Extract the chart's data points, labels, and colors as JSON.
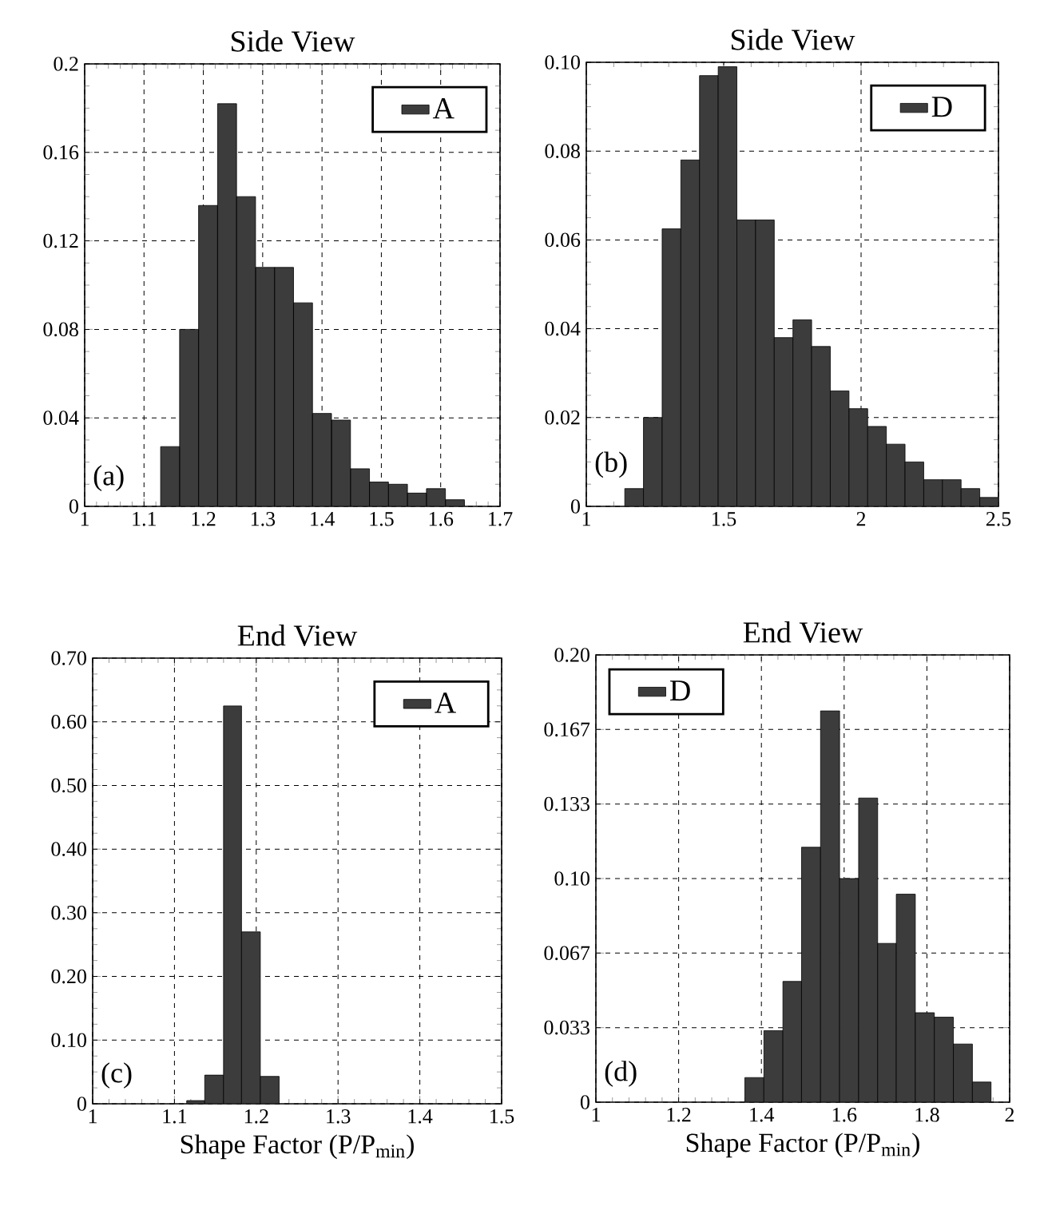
{
  "chart_data": [
    {
      "type": "histogram",
      "title": "Side View",
      "bins": [
        1.128,
        1.16,
        1.192,
        1.224,
        1.256,
        1.288,
        1.32,
        1.352,
        1.384,
        1.416,
        1.448,
        1.48,
        1.512,
        1.544,
        1.576,
        1.608,
        1.64
      ],
      "series": [
        {
          "name": "A",
          "color": "#3c3c3c",
          "values": [
            0.027,
            0.08,
            0.136,
            0.182,
            0.14,
            0.108,
            0.108,
            0.092,
            0.042,
            0.039,
            0.017,
            0.011,
            0.01,
            0.006,
            0.008,
            0.003
          ]
        }
      ],
      "xlim": [
        1,
        1.7
      ],
      "ylim": [
        0,
        0.2
      ],
      "xticks": [
        1,
        1.1,
        1.2,
        1.3,
        1.4,
        1.5,
        1.6,
        1.7
      ],
      "yticks": [
        0,
        0.04,
        0.08,
        0.12,
        0.16,
        0.2
      ],
      "grid": true,
      "legend": "top right",
      "annotations": [
        "(a)"
      ]
    },
    {
      "type": "histogram",
      "title": "Side View",
      "bins": [
        1.14,
        1.208,
        1.276,
        1.344,
        1.412,
        1.48,
        1.548,
        1.616,
        1.684,
        1.752,
        1.82,
        1.888,
        1.956,
        2.024,
        2.092,
        2.16,
        2.228,
        2.296,
        2.364,
        2.432,
        2.5
      ],
      "series": [
        {
          "name": "D",
          "color": "#3c3c3c",
          "values": [
            0.004,
            0.02,
            0.0625,
            0.078,
            0.097,
            0.099,
            0.0645,
            0.0645,
            0.038,
            0.042,
            0.036,
            0.026,
            0.022,
            0.018,
            0.014,
            0.01,
            0.006,
            0.006,
            0.004,
            0.002
          ]
        }
      ],
      "xlim": [
        1,
        2.5
      ],
      "ylim": [
        0,
        0.1
      ],
      "xticks": [
        1,
        1.5,
        2,
        2.5
      ],
      "yticks": [
        0,
        0.02,
        0.04,
        0.06,
        0.08,
        {
          "value": 0.1,
          "label": "0.10"
        }
      ],
      "grid": true,
      "legend": "top right",
      "annotations": [
        "(b)"
      ]
    },
    {
      "type": "histogram",
      "title": "End View",
      "xlabel": "Shape Factor (P/P$_{min}$)",
      "bins": [
        1.115,
        1.137,
        1.16,
        1.182,
        1.205,
        1.228
      ],
      "series": [
        {
          "name": "A",
          "color": "#3c3c3c",
          "values": [
            0.005,
            0.045,
            0.625,
            0.27,
            0.043
          ]
        }
      ],
      "xlim": [
        1,
        1.5
      ],
      "ylim": [
        0,
        0.7
      ],
      "xticks": [
        1,
        1.1,
        1.2,
        1.3,
        1.4,
        1.5
      ],
      "yticks": [
        0,
        {
          "value": 0.1,
          "label": "0.10"
        },
        {
          "value": 0.2,
          "label": "0.20"
        },
        {
          "value": 0.3,
          "label": "0.30"
        },
        {
          "value": 0.4,
          "label": "0.40"
        },
        {
          "value": 0.5,
          "label": "0.50"
        },
        {
          "value": 0.6,
          "label": "0.60"
        },
        {
          "value": 0.7,
          "label": "0.70"
        }
      ],
      "grid": true,
      "legend": "top right",
      "annotations": [
        "(c)"
      ]
    },
    {
      "type": "histogram",
      "title": "End View",
      "xlabel": "Shape Factor (P/P$_{min}$)",
      "bins": [
        1.36,
        1.406,
        1.452,
        1.497,
        1.543,
        1.589,
        1.635,
        1.681,
        1.726,
        1.772,
        1.818,
        1.864,
        1.91,
        1.955
      ],
      "series": [
        {
          "name": "D",
          "color": "#3c3c3c",
          "values": [
            0.011,
            0.032,
            0.054,
            0.114,
            0.175,
            0.1,
            0.136,
            0.071,
            0.093,
            0.04,
            0.038,
            0.026,
            0.009
          ]
        }
      ],
      "xlim": [
        1,
        2
      ],
      "ylim": [
        0,
        0.2
      ],
      "xticks": [
        1,
        1.2,
        1.4,
        1.6,
        1.8,
        2
      ],
      "yticks": [
        0,
        {
          "value": 0.0333333,
          "label": "0.033"
        },
        {
          "value": 0.0666667,
          "label": "0.067"
        },
        {
          "value": 0.1,
          "label": "0.10"
        },
        {
          "value": 0.1333333,
          "label": "0.133"
        },
        {
          "value": 0.1666667,
          "label": "0.167"
        },
        {
          "value": 0.2,
          "label": "0.20"
        }
      ],
      "grid": true,
      "legend": "top left",
      "annotations": [
        "(d)"
      ]
    }
  ]
}
